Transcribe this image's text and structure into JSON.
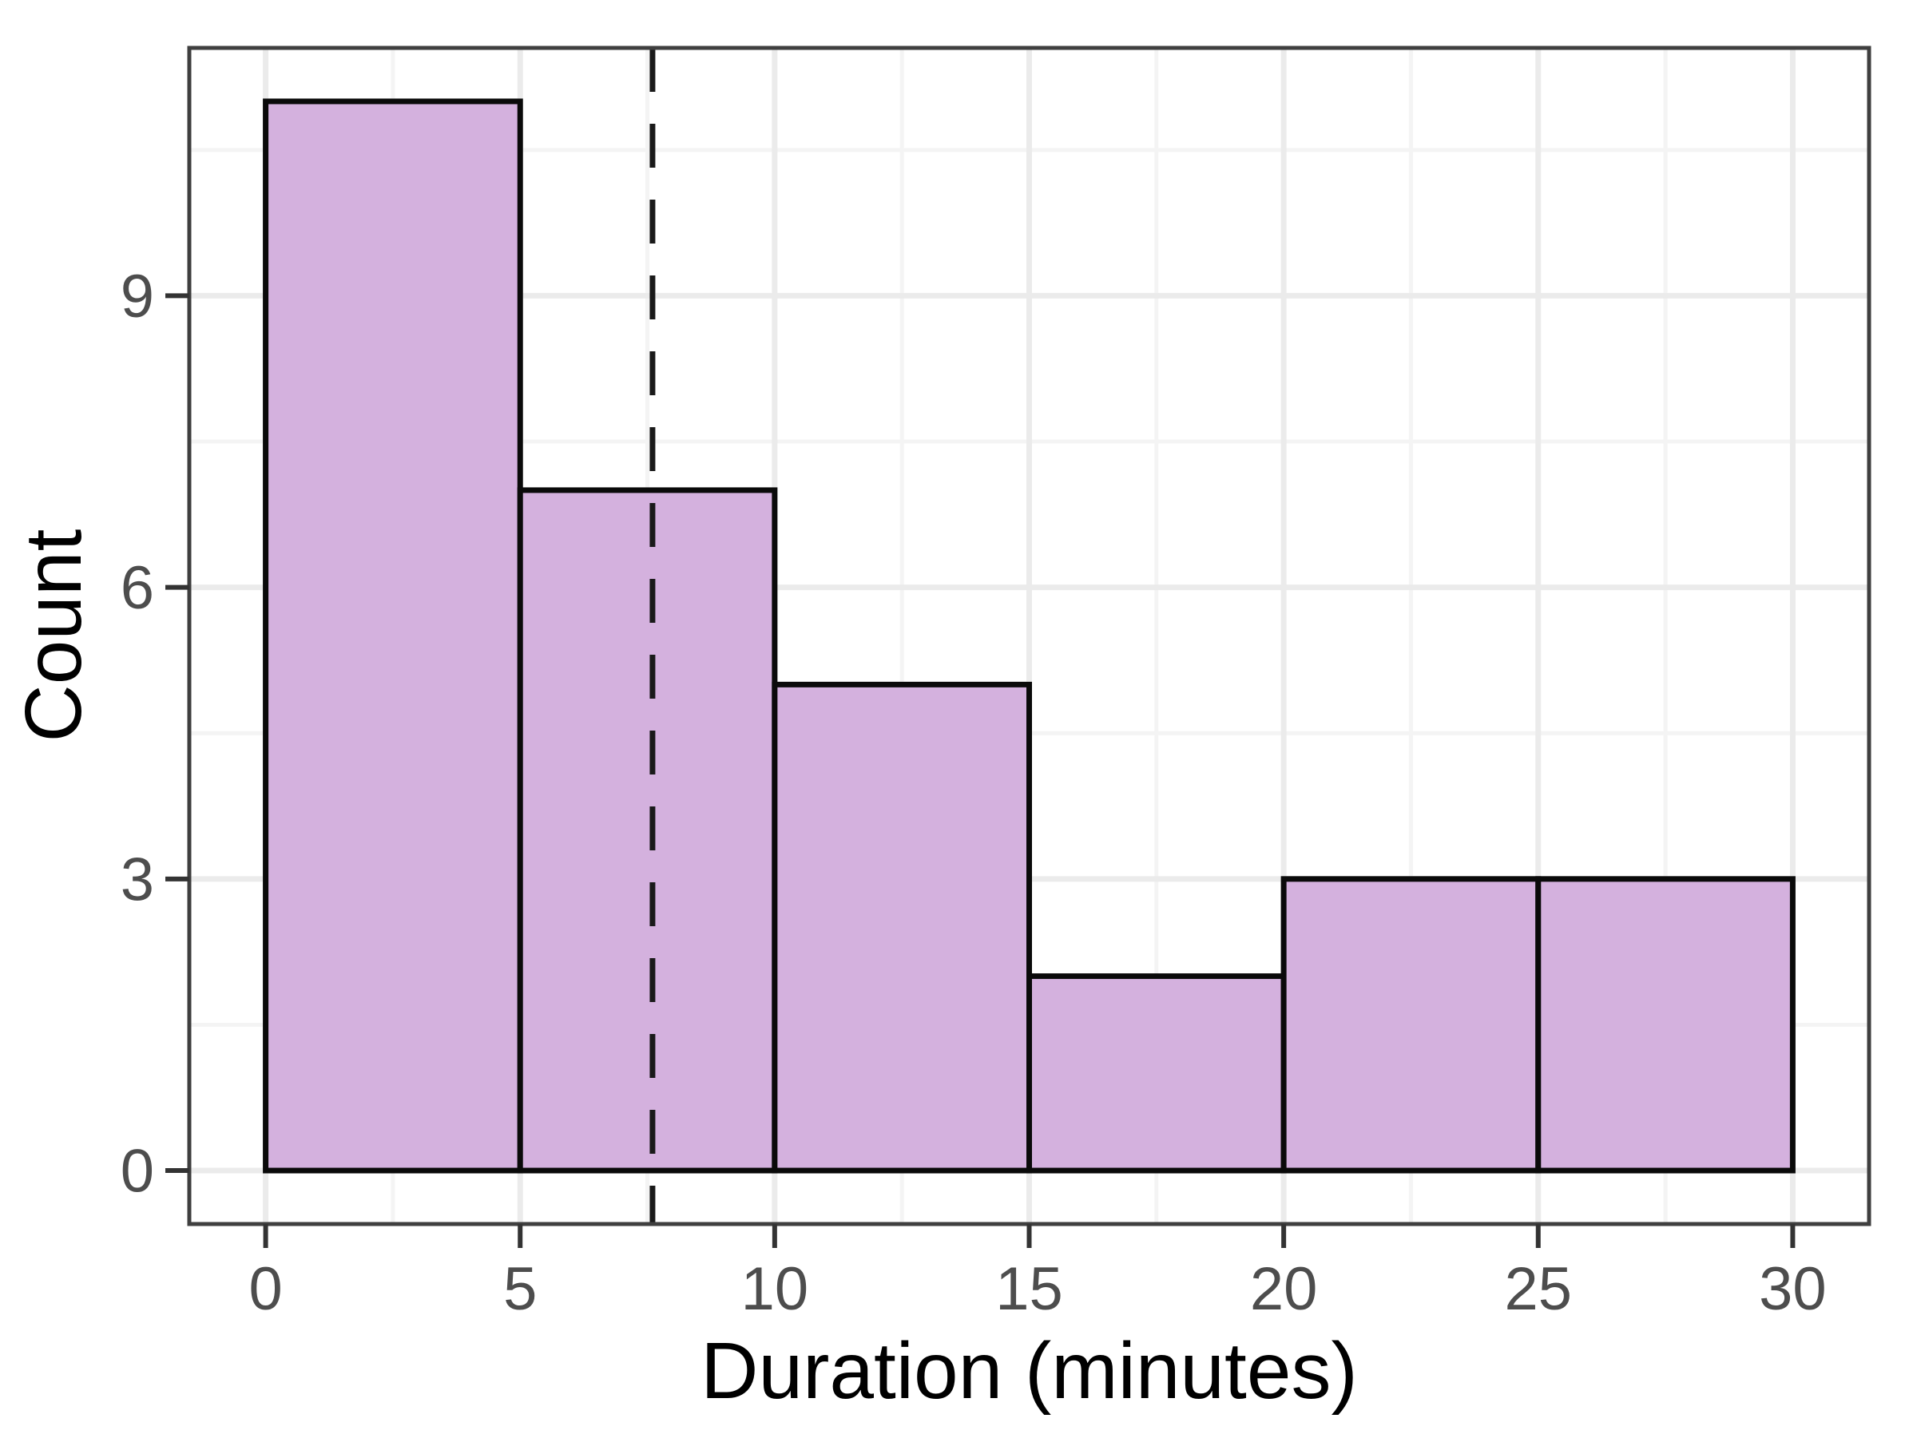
{
  "figure": {
    "x_axis_title": "Duration (minutes)",
    "y_axis_title": "Count"
  },
  "chart_data": {
    "type": "bar",
    "subtype": "histogram",
    "title": "",
    "xlabel": "Duration (minutes)",
    "ylabel": "Count",
    "bin_edges": [
      0,
      5,
      10,
      15,
      20,
      25,
      30
    ],
    "categories": [
      "0-5",
      "5-10",
      "10-15",
      "15-20",
      "20-25",
      "25-30"
    ],
    "values": [
      11,
      7,
      5,
      2,
      3,
      3
    ],
    "x_ticks": [
      0,
      5,
      10,
      15,
      20,
      25,
      30
    ],
    "y_ticks": [
      0,
      3,
      6,
      9
    ],
    "x_minor_gridlines": [
      2.5,
      7.5,
      12.5,
      17.5,
      22.5,
      27.5
    ],
    "y_minor_gridlines": [
      1.5,
      4.5,
      7.5,
      10.5
    ],
    "xlim": [
      -1.5,
      31.5
    ],
    "ylim": [
      -0.55,
      11.55
    ],
    "grid": "on",
    "legend": "none",
    "vline": {
      "x": 7.6,
      "style": "dashed",
      "label": ""
    },
    "colors": {
      "bar_fill": "#d4b1de",
      "bar_stroke": "#0a0a0a",
      "panel_border": "#3f3f3f",
      "panel_background": "#ffffff",
      "grid_major": "#ebebeb",
      "grid_minor": "#f4f4f4",
      "tick_mark": "#333333",
      "axis_text": "#4d4d4d",
      "axis_title": "#000000",
      "vline": "#1a1a1a"
    }
  }
}
